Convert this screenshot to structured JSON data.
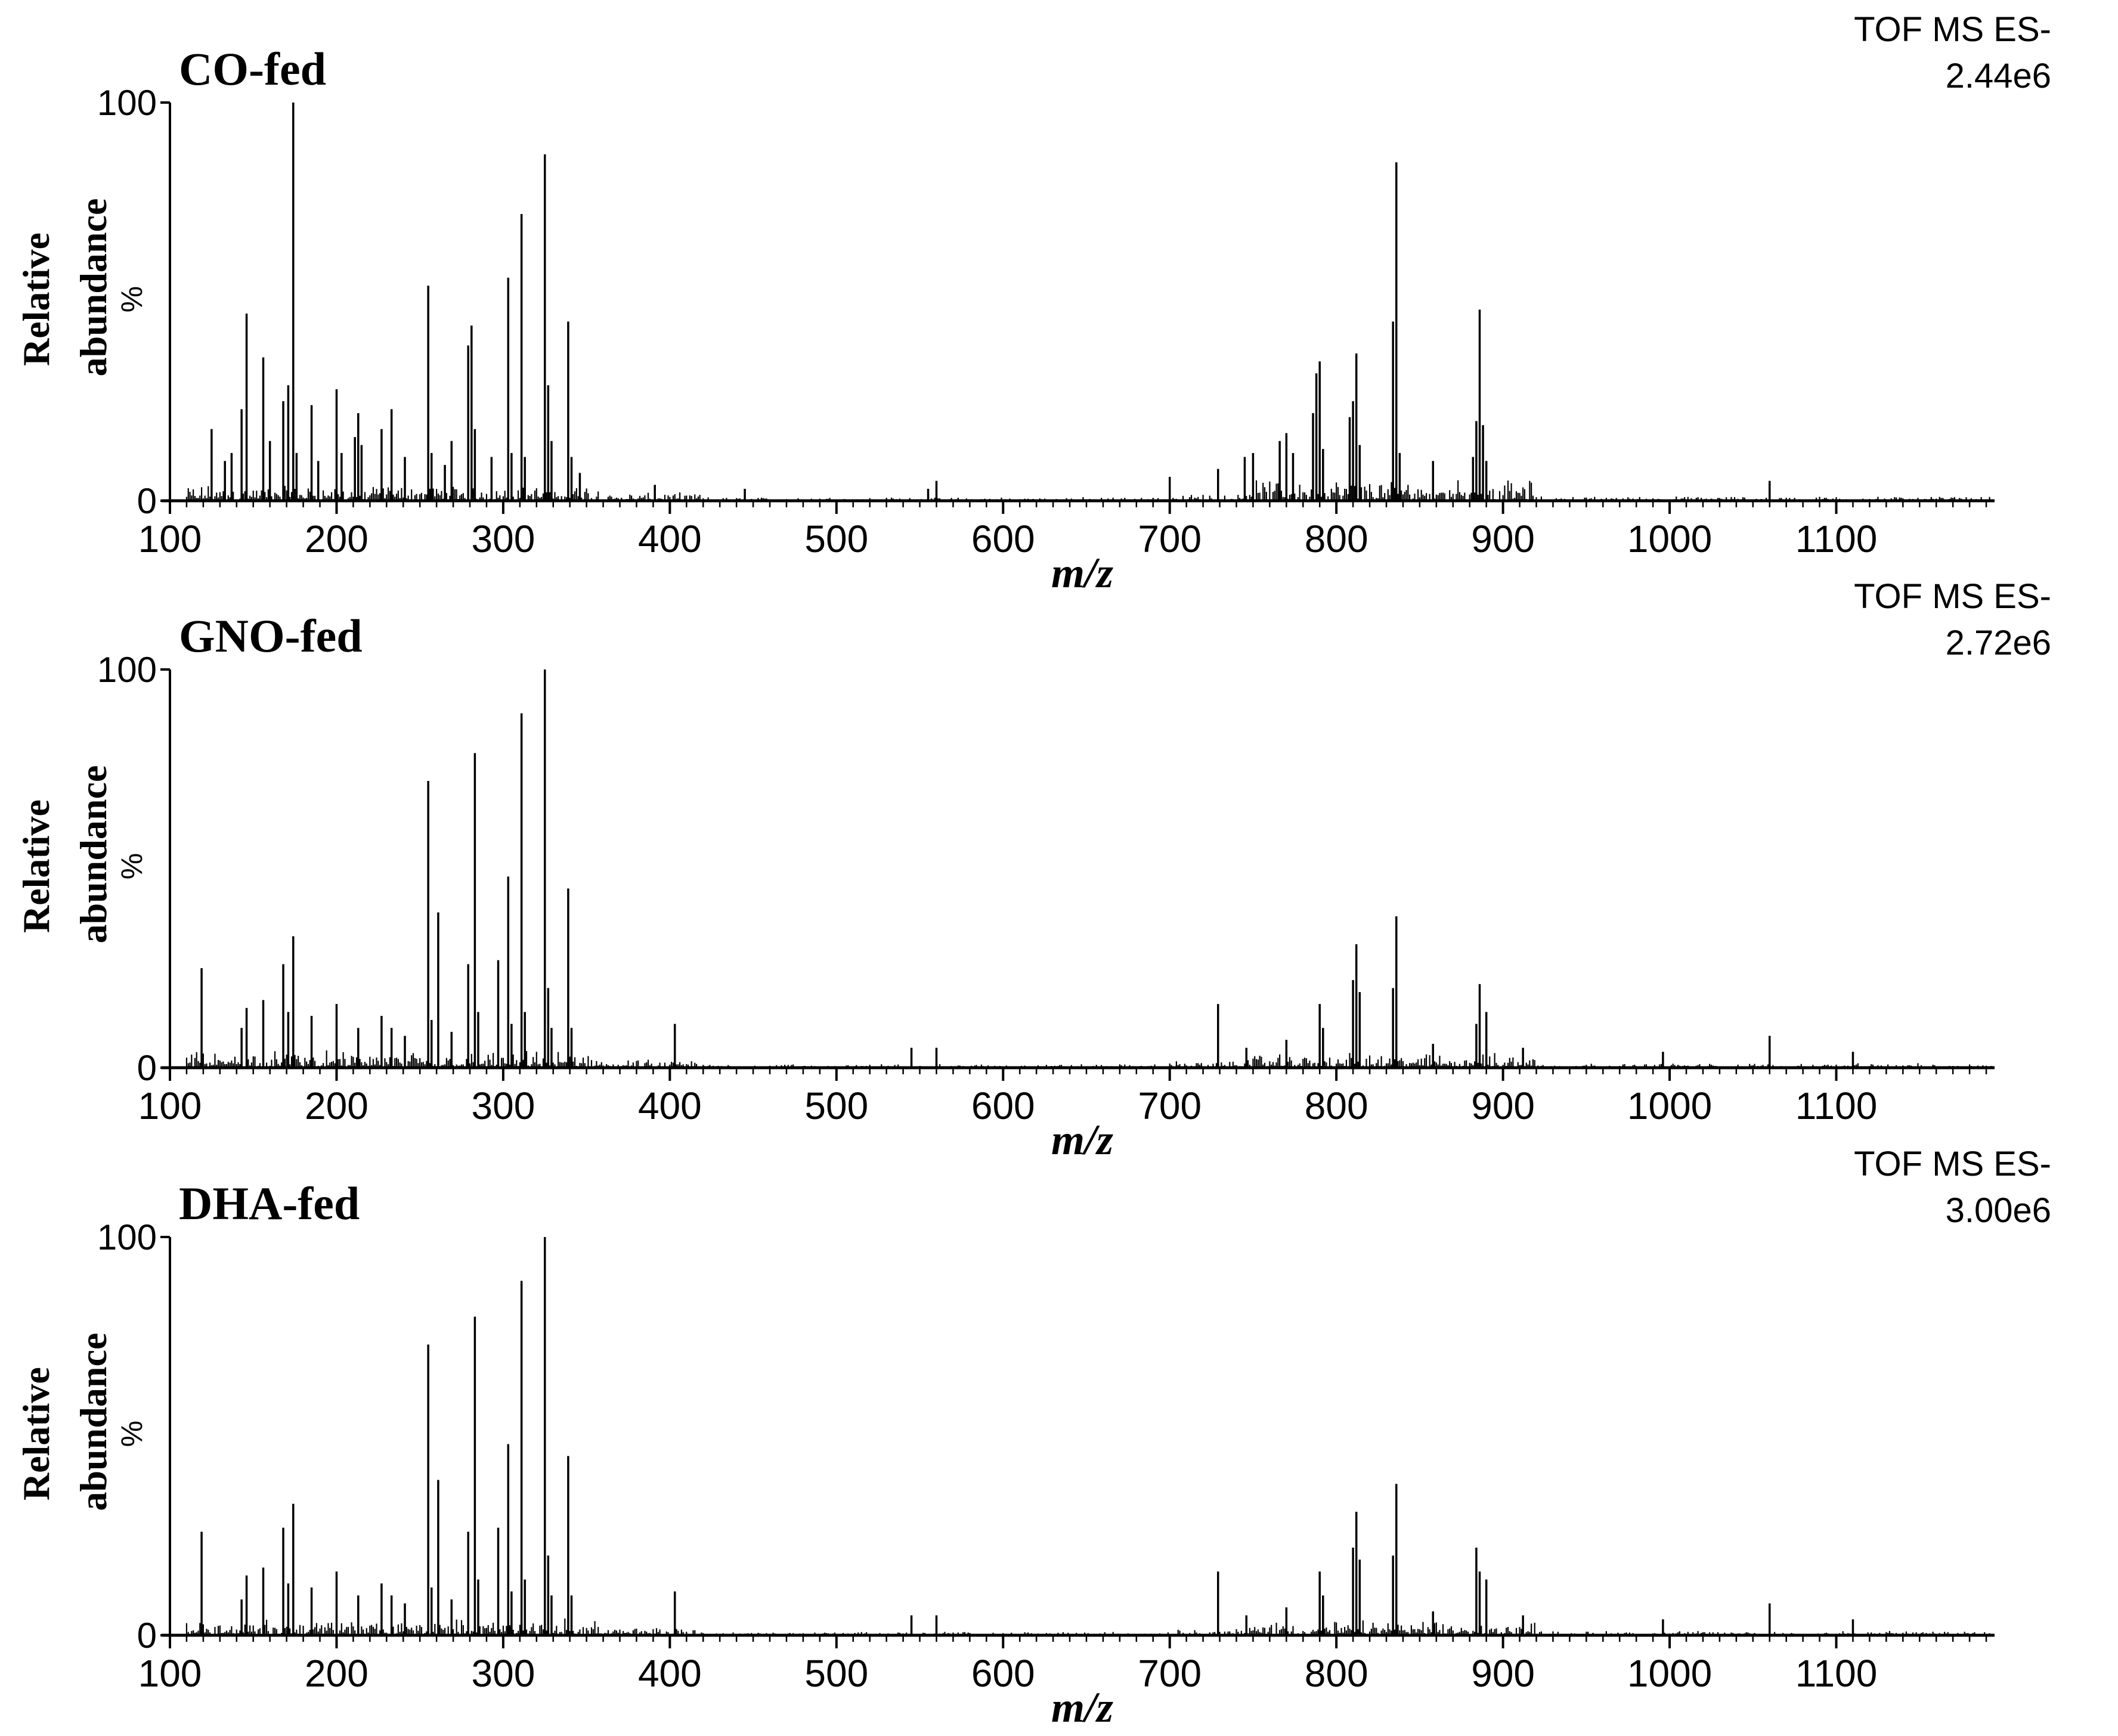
{
  "chart_data": [
    {
      "type": "bar",
      "title": "CO-fed",
      "instrument": "TOF MS ES-",
      "intensity": "2.44e6",
      "xlabel": "m/z",
      "ylabel_line1": "Relative",
      "ylabel_line2": "abundance",
      "ylabel_unit": "%",
      "xlim": [
        100,
        1195
      ],
      "ylim": [
        0,
        100
      ],
      "xticks": [
        "100",
        "200",
        "300",
        "400",
        "500",
        "600",
        "700",
        "800",
        "900",
        "1000",
        "1100"
      ],
      "yticks": [
        "0",
        "100"
      ],
      "peaks": [
        {
          "mz": 125,
          "value": 18
        },
        {
          "mz": 133,
          "value": 10
        },
        {
          "mz": 137,
          "value": 12
        },
        {
          "mz": 143,
          "value": 23
        },
        {
          "mz": 146,
          "value": 47
        },
        {
          "mz": 156,
          "value": 36
        },
        {
          "mz": 160,
          "value": 15
        },
        {
          "mz": 168,
          "value": 25
        },
        {
          "mz": 171,
          "value": 29
        },
        {
          "mz": 174,
          "value": 100
        },
        {
          "mz": 176,
          "value": 12
        },
        {
          "mz": 185,
          "value": 24
        },
        {
          "mz": 189,
          "value": 10
        },
        {
          "mz": 200,
          "value": 28
        },
        {
          "mz": 203,
          "value": 12
        },
        {
          "mz": 211,
          "value": 16
        },
        {
          "mz": 213,
          "value": 22
        },
        {
          "mz": 215,
          "value": 14
        },
        {
          "mz": 227,
          "value": 18
        },
        {
          "mz": 233,
          "value": 23
        },
        {
          "mz": 241,
          "value": 11
        },
        {
          "mz": 255,
          "value": 54
        },
        {
          "mz": 257,
          "value": 12
        },
        {
          "mz": 265,
          "value": 9
        },
        {
          "mz": 269,
          "value": 15
        },
        {
          "mz": 279,
          "value": 39
        },
        {
          "mz": 281,
          "value": 44
        },
        {
          "mz": 283,
          "value": 18
        },
        {
          "mz": 293,
          "value": 11
        },
        {
          "mz": 303,
          "value": 56
        },
        {
          "mz": 305,
          "value": 12
        },
        {
          "mz": 311,
          "value": 72
        },
        {
          "mz": 313,
          "value": 11
        },
        {
          "mz": 325,
          "value": 87
        },
        {
          "mz": 327,
          "value": 29
        },
        {
          "mz": 329,
          "value": 15
        },
        {
          "mz": 339,
          "value": 45
        },
        {
          "mz": 341,
          "value": 11
        },
        {
          "mz": 346,
          "value": 7
        },
        {
          "mz": 391,
          "value": 4
        },
        {
          "mz": 445,
          "value": 3
        },
        {
          "mz": 555,
          "value": 3
        },
        {
          "mz": 560,
          "value": 5
        },
        {
          "mz": 700,
          "value": 6
        },
        {
          "mz": 729,
          "value": 8
        },
        {
          "mz": 745,
          "value": 11
        },
        {
          "mz": 750,
          "value": 12
        },
        {
          "mz": 766,
          "value": 15
        },
        {
          "mz": 770,
          "value": 17
        },
        {
          "mz": 774,
          "value": 12
        },
        {
          "mz": 786,
          "value": 22
        },
        {
          "mz": 788,
          "value": 32
        },
        {
          "mz": 790,
          "value": 35
        },
        {
          "mz": 792,
          "value": 13
        },
        {
          "mz": 808,
          "value": 21
        },
        {
          "mz": 810,
          "value": 25
        },
        {
          "mz": 812,
          "value": 37
        },
        {
          "mz": 814,
          "value": 14
        },
        {
          "mz": 834,
          "value": 45
        },
        {
          "mz": 836,
          "value": 85
        },
        {
          "mz": 838,
          "value": 12
        },
        {
          "mz": 858,
          "value": 10
        },
        {
          "mz": 882,
          "value": 11
        },
        {
          "mz": 884,
          "value": 20
        },
        {
          "mz": 886,
          "value": 48
        },
        {
          "mz": 888,
          "value": 19
        },
        {
          "mz": 890,
          "value": 10
        },
        {
          "mz": 1060,
          "value": 5
        }
      ]
    },
    {
      "type": "bar",
      "title": "GNO-fed",
      "instrument": "TOF MS ES-",
      "intensity": "2.72e6",
      "xlabel": "m/z",
      "ylabel_line1": "Relative",
      "ylabel_line2": "abundance",
      "ylabel_unit": "%",
      "xlim": [
        100,
        1195
      ],
      "ylim": [
        0,
        100
      ],
      "xticks": [
        "100",
        "200",
        "300",
        "400",
        "500",
        "600",
        "700",
        "800",
        "900",
        "1000",
        "1100"
      ],
      "yticks": [
        "0",
        "100"
      ],
      "peaks": [
        {
          "mz": 119,
          "value": 25
        },
        {
          "mz": 143,
          "value": 10
        },
        {
          "mz": 146,
          "value": 15
        },
        {
          "mz": 156,
          "value": 17
        },
        {
          "mz": 168,
          "value": 26
        },
        {
          "mz": 171,
          "value": 14
        },
        {
          "mz": 174,
          "value": 33
        },
        {
          "mz": 185,
          "value": 13
        },
        {
          "mz": 200,
          "value": 16
        },
        {
          "mz": 213,
          "value": 10
        },
        {
          "mz": 227,
          "value": 13
        },
        {
          "mz": 233,
          "value": 10
        },
        {
          "mz": 241,
          "value": 8
        },
        {
          "mz": 255,
          "value": 72
        },
        {
          "mz": 257,
          "value": 12
        },
        {
          "mz": 261,
          "value": 39
        },
        {
          "mz": 269,
          "value": 9
        },
        {
          "mz": 279,
          "value": 26
        },
        {
          "mz": 283,
          "value": 79
        },
        {
          "mz": 285,
          "value": 14
        },
        {
          "mz": 297,
          "value": 27
        },
        {
          "mz": 303,
          "value": 48
        },
        {
          "mz": 305,
          "value": 11
        },
        {
          "mz": 311,
          "value": 89
        },
        {
          "mz": 313,
          "value": 14
        },
        {
          "mz": 325,
          "value": 100
        },
        {
          "mz": 327,
          "value": 20
        },
        {
          "mz": 329,
          "value": 10
        },
        {
          "mz": 339,
          "value": 45
        },
        {
          "mz": 341,
          "value": 10
        },
        {
          "mz": 403,
          "value": 11
        },
        {
          "mz": 545,
          "value": 5
        },
        {
          "mz": 560,
          "value": 5
        },
        {
          "mz": 729,
          "value": 16
        },
        {
          "mz": 746,
          "value": 5
        },
        {
          "mz": 770,
          "value": 7
        },
        {
          "mz": 790,
          "value": 16
        },
        {
          "mz": 792,
          "value": 10
        },
        {
          "mz": 810,
          "value": 22
        },
        {
          "mz": 812,
          "value": 31
        },
        {
          "mz": 814,
          "value": 19
        },
        {
          "mz": 834,
          "value": 20
        },
        {
          "mz": 836,
          "value": 38
        },
        {
          "mz": 858,
          "value": 6
        },
        {
          "mz": 884,
          "value": 11
        },
        {
          "mz": 886,
          "value": 21
        },
        {
          "mz": 890,
          "value": 14
        },
        {
          "mz": 912,
          "value": 5
        },
        {
          "mz": 996,
          "value": 4
        },
        {
          "mz": 1060,
          "value": 8
        },
        {
          "mz": 1110,
          "value": 4
        }
      ]
    },
    {
      "type": "bar",
      "title": "DHA-fed",
      "instrument": "TOF MS ES-",
      "intensity": "3.00e6",
      "xlabel": "m/z",
      "ylabel_line1": "Relative",
      "ylabel_line2": "abundance",
      "ylabel_unit": "%",
      "xlim": [
        100,
        1195
      ],
      "ylim": [
        0,
        100
      ],
      "xticks": [
        "100",
        "200",
        "300",
        "400",
        "500",
        "600",
        "700",
        "800",
        "900",
        "1000",
        "1100"
      ],
      "yticks": [
        "0",
        "100"
      ],
      "peaks": [
        {
          "mz": 119,
          "value": 26
        },
        {
          "mz": 143,
          "value": 9
        },
        {
          "mz": 146,
          "value": 15
        },
        {
          "mz": 156,
          "value": 17
        },
        {
          "mz": 168,
          "value": 27
        },
        {
          "mz": 171,
          "value": 13
        },
        {
          "mz": 174,
          "value": 33
        },
        {
          "mz": 185,
          "value": 12
        },
        {
          "mz": 200,
          "value": 16
        },
        {
          "mz": 213,
          "value": 10
        },
        {
          "mz": 227,
          "value": 13
        },
        {
          "mz": 233,
          "value": 10
        },
        {
          "mz": 241,
          "value": 8
        },
        {
          "mz": 255,
          "value": 73
        },
        {
          "mz": 257,
          "value": 12
        },
        {
          "mz": 261,
          "value": 39
        },
        {
          "mz": 269,
          "value": 9
        },
        {
          "mz": 279,
          "value": 26
        },
        {
          "mz": 283,
          "value": 80
        },
        {
          "mz": 285,
          "value": 14
        },
        {
          "mz": 297,
          "value": 27
        },
        {
          "mz": 303,
          "value": 48
        },
        {
          "mz": 305,
          "value": 11
        },
        {
          "mz": 311,
          "value": 89
        },
        {
          "mz": 313,
          "value": 14
        },
        {
          "mz": 325,
          "value": 100
        },
        {
          "mz": 327,
          "value": 20
        },
        {
          "mz": 329,
          "value": 10
        },
        {
          "mz": 339,
          "value": 45
        },
        {
          "mz": 341,
          "value": 10
        },
        {
          "mz": 403,
          "value": 11
        },
        {
          "mz": 545,
          "value": 5
        },
        {
          "mz": 560,
          "value": 5
        },
        {
          "mz": 729,
          "value": 16
        },
        {
          "mz": 746,
          "value": 5
        },
        {
          "mz": 770,
          "value": 7
        },
        {
          "mz": 790,
          "value": 16
        },
        {
          "mz": 792,
          "value": 10
        },
        {
          "mz": 810,
          "value": 22
        },
        {
          "mz": 812,
          "value": 31
        },
        {
          "mz": 814,
          "value": 19
        },
        {
          "mz": 834,
          "value": 20
        },
        {
          "mz": 836,
          "value": 38
        },
        {
          "mz": 858,
          "value": 6
        },
        {
          "mz": 884,
          "value": 22
        },
        {
          "mz": 886,
          "value": 16
        },
        {
          "mz": 890,
          "value": 14
        },
        {
          "mz": 912,
          "value": 5
        },
        {
          "mz": 996,
          "value": 4
        },
        {
          "mz": 1060,
          "value": 8
        },
        {
          "mz": 1110,
          "value": 4
        }
      ]
    }
  ]
}
